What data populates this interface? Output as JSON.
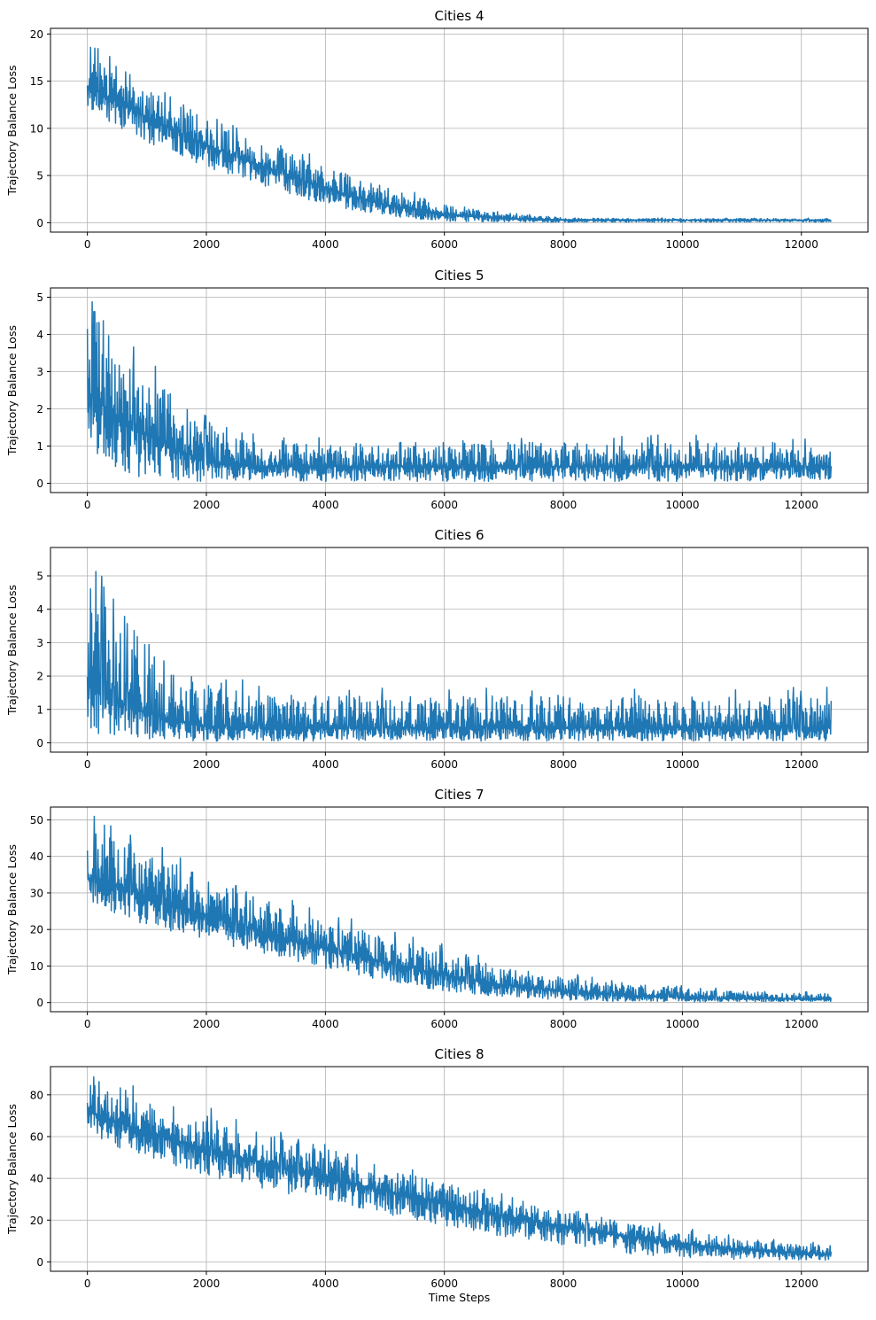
{
  "colors": {
    "line": "#1f77b4",
    "grid": "#b0b0b0",
    "axes": "#000000",
    "background": "#ffffff"
  },
  "chart_data": [
    {
      "type": "line",
      "title": "Cities 4",
      "xlabel": "",
      "ylabel": "Trajectory Balance Loss",
      "xlim": [
        -620,
        13120
      ],
      "ylim": [
        -1.0,
        20.6
      ],
      "xticks": [
        0,
        2000,
        4000,
        6000,
        8000,
        10000,
        12000
      ],
      "yticks": [
        0,
        5,
        10,
        15,
        20
      ],
      "grid": true,
      "series": [
        {
          "name": "Trajectory Balance Loss",
          "x_range": [
            0,
            12500
          ],
          "trend": {
            "x": [
              0,
              500,
              1000,
              2000,
              3000,
              4000,
              5000,
              6000,
              7000,
              8000,
              9000,
              10000,
              11000,
              12500
            ],
            "y": [
              14.5,
              12.8,
              11.2,
              8.2,
              5.8,
              3.6,
              1.9,
              0.9,
              0.45,
              0.3,
              0.28,
              0.27,
              0.27,
              0.27
            ]
          },
          "upper": {
            "x": [
              0,
              100,
              500,
              1000,
              2000,
              3000,
              4000,
              5000,
              6000,
              7000,
              8000,
              9000,
              10000,
              12500
            ],
            "y": [
              17.5,
              19.6,
              17.0,
              14.2,
              11.0,
              8.2,
              6.0,
              3.8,
              2.0,
              1.1,
              0.5,
              0.45,
              0.45,
              0.45
            ]
          },
          "lower": {
            "x": [
              0,
              500,
              1000,
              2000,
              3000,
              4000,
              5000,
              6000,
              7000,
              8000,
              9000,
              12500
            ],
            "y": [
              12.2,
              10.2,
              8.5,
              5.8,
              3.6,
              1.9,
              0.7,
              0.15,
              0.05,
              0.05,
              0.05,
              0.05
            ]
          }
        }
      ]
    },
    {
      "type": "line",
      "title": "Cities 5",
      "xlabel": "",
      "ylabel": "Trajectory Balance Loss",
      "xlim": [
        -620,
        13120
      ],
      "ylim": [
        -0.25,
        5.25
      ],
      "xticks": [
        0,
        2000,
        4000,
        6000,
        8000,
        10000,
        12000
      ],
      "yticks": [
        0,
        1,
        2,
        3,
        4,
        5
      ],
      "grid": true,
      "series": [
        {
          "name": "Trajectory Balance Loss",
          "x_range": [
            0,
            12500
          ],
          "trend": {
            "x": [
              0,
              200,
              500,
              1000,
              1500,
              2000,
              2500,
              3000,
              12500
            ],
            "y": [
              2.4,
              2.2,
              1.8,
              1.3,
              0.9,
              0.6,
              0.48,
              0.45,
              0.45
            ]
          },
          "upper": {
            "x": [
              0,
              200,
              500,
              1000,
              1500,
              2000,
              2500,
              3000,
              12500
            ],
            "y": [
              4.5,
              4.9,
              3.8,
              2.9,
              2.2,
              1.6,
              1.2,
              1.1,
              1.1
            ]
          },
          "lower": {
            "x": [
              0,
              200,
              500,
              1000,
              2000,
              12500
            ],
            "y": [
              1.5,
              0.6,
              0.25,
              0.1,
              0.05,
              0.05
            ]
          }
        }
      ]
    },
    {
      "type": "line",
      "title": "Cities 6",
      "xlabel": "",
      "ylabel": "Trajectory Balance Loss",
      "xlim": [
        -620,
        13120
      ],
      "ylim": [
        -0.28,
        5.85
      ],
      "xticks": [
        0,
        2000,
        4000,
        6000,
        8000,
        10000,
        12000
      ],
      "yticks": [
        0,
        1,
        2,
        3,
        4,
        5
      ],
      "grid": true,
      "series": [
        {
          "name": "Trajectory Balance Loss",
          "x_range": [
            0,
            12500
          ],
          "trend": {
            "x": [
              0,
              200,
              500,
              1000,
              1500,
              2000,
              3000,
              12500
            ],
            "y": [
              1.7,
              1.5,
              1.2,
              0.9,
              0.65,
              0.5,
              0.45,
              0.45
            ]
          },
          "upper": {
            "x": [
              0,
              200,
              500,
              1000,
              1500,
              2000,
              3000,
              12500
            ],
            "y": [
              4.8,
              4.5,
              3.8,
              3.0,
              2.3,
              1.8,
              1.4,
              1.4
            ]
          },
          "lower": {
            "x": [
              0,
              200,
              500,
              1000,
              2000,
              12500
            ],
            "y": [
              0.5,
              0.25,
              0.12,
              0.08,
              0.05,
              0.05
            ]
          }
        }
      ]
    },
    {
      "type": "line",
      "title": "Cities 7",
      "xlabel": "",
      "ylabel": "Trajectory Balance Loss",
      "xlim": [
        -620,
        13120
      ],
      "ylim": [
        -2.5,
        53.5
      ],
      "xticks": [
        0,
        2000,
        4000,
        6000,
        8000,
        10000,
        12000
      ],
      "yticks": [
        0,
        10,
        20,
        30,
        40,
        50
      ],
      "grid": true,
      "series": [
        {
          "name": "Trajectory Balance Loss",
          "x_range": [
            0,
            12500
          ],
          "trend": {
            "x": [
              0,
              500,
              1000,
              2000,
              3000,
              4000,
              5000,
              6000,
              7000,
              8000,
              9000,
              10000,
              11000,
              12500
            ],
            "y": [
              34,
              32,
              29,
              24,
              19,
              15,
              11,
              7.5,
              4.8,
              3.0,
              2.0,
              1.4,
              1.1,
              1.0
            ]
          },
          "upper": {
            "x": [
              0,
              100,
              500,
              1000,
              1500,
              2000,
              3000,
              4000,
              5000,
              6000,
              7000,
              8000,
              9000,
              10000,
              11000,
              12500
            ],
            "y": [
              42,
              50,
              45,
              41,
              38,
              34,
              28,
              23,
              18,
              14,
              10,
              7,
              5,
              4,
              3,
              2.5
            ]
          },
          "lower": {
            "x": [
              0,
              500,
              1000,
              2000,
              3000,
              4000,
              5000,
              6000,
              7000,
              8000,
              9000,
              10000,
              12500
            ],
            "y": [
              28,
              24,
              21,
              17,
              13,
              9,
              6,
              3,
              1.5,
              0.6,
              0.3,
              0.2,
              0.2
            ]
          }
        }
      ]
    },
    {
      "type": "line",
      "title": "Cities 8",
      "xlabel": "Time Steps",
      "ylabel": "Trajectory Balance Loss",
      "xlim": [
        -620,
        13120
      ],
      "ylim": [
        -4.5,
        93.5
      ],
      "xticks": [
        0,
        2000,
        4000,
        6000,
        8000,
        10000,
        12000
      ],
      "yticks": [
        0,
        20,
        40,
        60,
        80
      ],
      "grid": true,
      "series": [
        {
          "name": "Trajectory Balance Loss",
          "x_range": [
            0,
            12500
          ],
          "trend": {
            "x": [
              0,
              500,
              1000,
              2000,
              3000,
              4000,
              5000,
              6000,
              7000,
              8000,
              9000,
              10000,
              11000,
              12500
            ],
            "y": [
              72,
              67,
              62,
              54,
              47,
              40,
              34,
              28,
              22,
              17,
              12.5,
              8.5,
              6,
              3.5
            ]
          },
          "upper": {
            "x": [
              0,
              100,
              500,
              1000,
              2000,
              3000,
              4000,
              5000,
              6000,
              7000,
              8000,
              9000,
              10000,
              11000,
              12500
            ],
            "y": [
              85,
              89,
              84,
              78,
              70,
              61,
              54,
              45,
              38,
              30,
              24,
              19,
              15,
              11,
              8
            ]
          },
          "lower": {
            "x": [
              0,
              500,
              1000,
              2000,
              3000,
              4000,
              5000,
              6000,
              7000,
              8000,
              9000,
              10000,
              11000,
              12500
            ],
            "y": [
              63,
              54,
              50,
              41,
              34,
              29,
              23,
              17,
              12,
              8,
              4,
              2,
              1,
              0.5
            ]
          }
        }
      ]
    }
  ]
}
